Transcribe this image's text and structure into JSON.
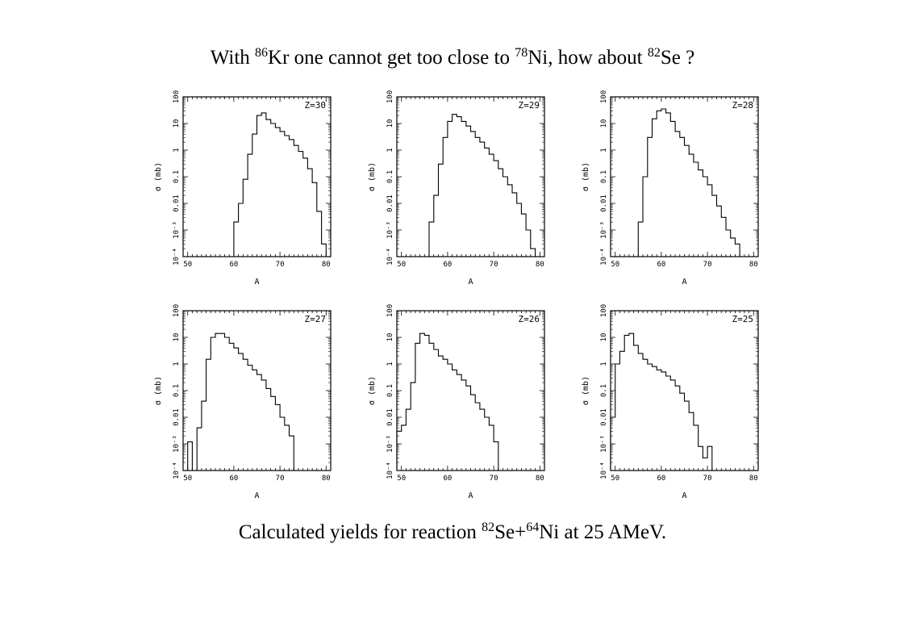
{
  "slide": {
    "title": {
      "p1": "With ",
      "s1": "86",
      "p2": "Kr one cannot get too close to ",
      "s2": "78",
      "p3": "Ni, how about ",
      "s3": "82",
      "p4": "Se ?"
    },
    "caption": {
      "p1": "Calculated yields for reaction ",
      "s1": "82",
      "p2": "Se+",
      "s2": "64",
      "p3": "Ni at 25 AMeV."
    }
  },
  "chart_data": [
    {
      "type": "histogram",
      "title": "Z=30",
      "xlabel": "A",
      "ylabel": "σ (mb)",
      "xlim": [
        49,
        81
      ],
      "ylim": [
        0.0001,
        100
      ],
      "yscale": "log",
      "xticks": [
        "50",
        "60",
        "70",
        "80"
      ],
      "yticks": [
        "10⁻⁴",
        "10⁻³",
        "0.01",
        "0.1",
        "1",
        "10",
        "100"
      ],
      "x": [
        59,
        60,
        61,
        62,
        63,
        64,
        65,
        66,
        67,
        68,
        69,
        70,
        71,
        72,
        73,
        74,
        75,
        76,
        77,
        78,
        79,
        80
      ],
      "values": [
        0.0001,
        0.002,
        0.01,
        0.08,
        0.7,
        4,
        20,
        25,
        14,
        10,
        7,
        5,
        3.5,
        2.5,
        1.5,
        0.9,
        0.5,
        0.2,
        0.06,
        0.005,
        0.0003,
        0.0001
      ]
    },
    {
      "type": "histogram",
      "title": "Z=29",
      "xlabel": "A",
      "ylabel": "σ (mb)",
      "xlim": [
        49,
        81
      ],
      "ylim": [
        0.0001,
        100
      ],
      "yscale": "log",
      "xticks": [
        "50",
        "60",
        "70",
        "80"
      ],
      "yticks": [
        "10⁻⁴",
        "10⁻³",
        "0.01",
        "0.1",
        "1",
        "10",
        "100"
      ],
      "x": [
        56,
        57,
        58,
        59,
        60,
        61,
        62,
        63,
        64,
        65,
        66,
        67,
        68,
        69,
        70,
        71,
        72,
        73,
        74,
        75,
        76,
        77,
        78
      ],
      "values": [
        0.002,
        0.02,
        0.3,
        3,
        12,
        22,
        18,
        12,
        8,
        5,
        3,
        2,
        1.2,
        0.7,
        0.4,
        0.2,
        0.1,
        0.05,
        0.025,
        0.01,
        0.004,
        0.001,
        0.0002
      ]
    },
    {
      "type": "histogram",
      "title": "Z=28",
      "xlabel": "A",
      "ylabel": "σ (mb)",
      "xlim": [
        49,
        81
      ],
      "ylim": [
        0.0001,
        100
      ],
      "yscale": "log",
      "xticks": [
        "50",
        "60",
        "70",
        "80"
      ],
      "yticks": [
        "10⁻⁴",
        "10⁻³",
        "0.01",
        "0.1",
        "1",
        "10",
        "100"
      ],
      "x": [
        54,
        55,
        56,
        57,
        58,
        59,
        60,
        61,
        62,
        63,
        64,
        65,
        66,
        67,
        68,
        69,
        70,
        71,
        72,
        73,
        74,
        75,
        76,
        77
      ],
      "values": [
        0.0001,
        0.002,
        0.1,
        3,
        15,
        30,
        35,
        25,
        12,
        5,
        3,
        1.5,
        0.7,
        0.35,
        0.18,
        0.1,
        0.05,
        0.02,
        0.008,
        0.003,
        0.001,
        0.0005,
        0.0003,
        0.0001
      ]
    },
    {
      "type": "histogram",
      "title": "Z=27",
      "xlabel": "A",
      "ylabel": "σ (mb)",
      "xlim": [
        49,
        81
      ],
      "ylim": [
        0.0001,
        100
      ],
      "yscale": "log",
      "xticks": [
        "50",
        "60",
        "70",
        "80"
      ],
      "yticks": [
        "10⁻⁴",
        "10⁻³",
        "0.01",
        "0.1",
        "1",
        "10",
        "100"
      ],
      "x": [
        50,
        51,
        52,
        53,
        54,
        55,
        56,
        57,
        58,
        59,
        60,
        61,
        62,
        63,
        64,
        65,
        66,
        67,
        68,
        69,
        70,
        71,
        72,
        73
      ],
      "values": [
        0.0012,
        0.0001,
        0.004,
        0.04,
        1.5,
        10,
        14,
        14,
        10,
        6,
        4,
        2.5,
        1.5,
        0.9,
        0.6,
        0.4,
        0.25,
        0.12,
        0.06,
        0.03,
        0.01,
        0.005,
        0.002,
        0.0001
      ]
    },
    {
      "type": "histogram",
      "title": "Z=26",
      "xlabel": "A",
      "ylabel": "σ (mb)",
      "xlim": [
        49,
        81
      ],
      "ylim": [
        0.0001,
        100
      ],
      "yscale": "log",
      "xticks": [
        "50",
        "60",
        "70",
        "80"
      ],
      "yticks": [
        "10⁻⁴",
        "10⁻³",
        "0.01",
        "0.1",
        "1",
        "10",
        "100"
      ],
      "x": [
        49,
        50,
        51,
        52,
        53,
        54,
        55,
        56,
        57,
        58,
        59,
        60,
        61,
        62,
        63,
        64,
        65,
        66,
        67,
        68,
        69,
        70,
        71
      ],
      "values": [
        0.003,
        0.005,
        0.02,
        0.2,
        6,
        14,
        12,
        6,
        3.5,
        2,
        1.5,
        1,
        0.6,
        0.4,
        0.25,
        0.15,
        0.07,
        0.035,
        0.02,
        0.01,
        0.005,
        0.0012,
        0.0001
      ]
    },
    {
      "type": "histogram",
      "title": "Z=25",
      "xlabel": "A",
      "ylabel": "σ (mb)",
      "xlim": [
        49,
        81
      ],
      "ylim": [
        0.0001,
        100
      ],
      "yscale": "log",
      "xticks": [
        "50",
        "60",
        "70",
        "80"
      ],
      "yticks": [
        "10⁻⁴",
        "10⁻³",
        "0.01",
        "0.1",
        "1",
        "10",
        "100"
      ],
      "x": [
        49,
        50,
        51,
        52,
        53,
        54,
        55,
        56,
        57,
        58,
        59,
        60,
        61,
        62,
        63,
        64,
        65,
        66,
        67,
        68,
        69,
        70,
        71
      ],
      "values": [
        0.01,
        1,
        3,
        12,
        14,
        5,
        2.5,
        1.5,
        1,
        0.8,
        0.6,
        0.5,
        0.35,
        0.25,
        0.15,
        0.08,
        0.04,
        0.015,
        0.005,
        0.0008,
        0.0003,
        0.0008,
        0.0001
      ]
    }
  ]
}
